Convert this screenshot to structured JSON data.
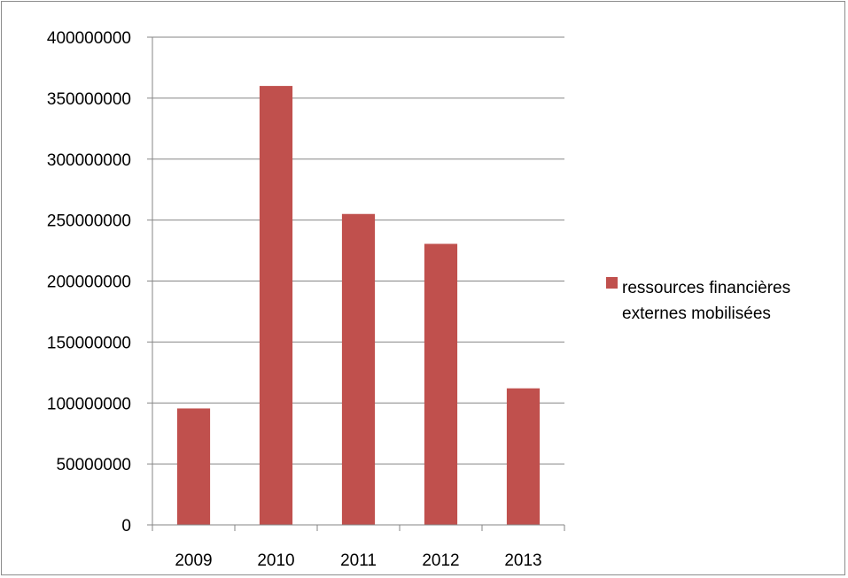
{
  "chart_data": {
    "type": "bar",
    "categories": [
      "2009",
      "2010",
      "2011",
      "2012",
      "2013"
    ],
    "series": [
      {
        "name": "ressources financières externes mobilisées",
        "values": [
          95500000,
          360000000,
          255000000,
          230500000,
          112000000
        ],
        "color": "#c0504d"
      }
    ],
    "ylim": [
      0,
      400000000
    ],
    "yticks": [
      "0",
      "50000000",
      "100000000",
      "150000000",
      "200000000",
      "250000000",
      "300000000",
      "350000000",
      "400000000"
    ],
    "grid": true,
    "legend_position": "right",
    "legend_lines": [
      "ressources financières",
      "externes mobilisées"
    ],
    "title": "",
    "xlabel": "",
    "ylabel": ""
  }
}
